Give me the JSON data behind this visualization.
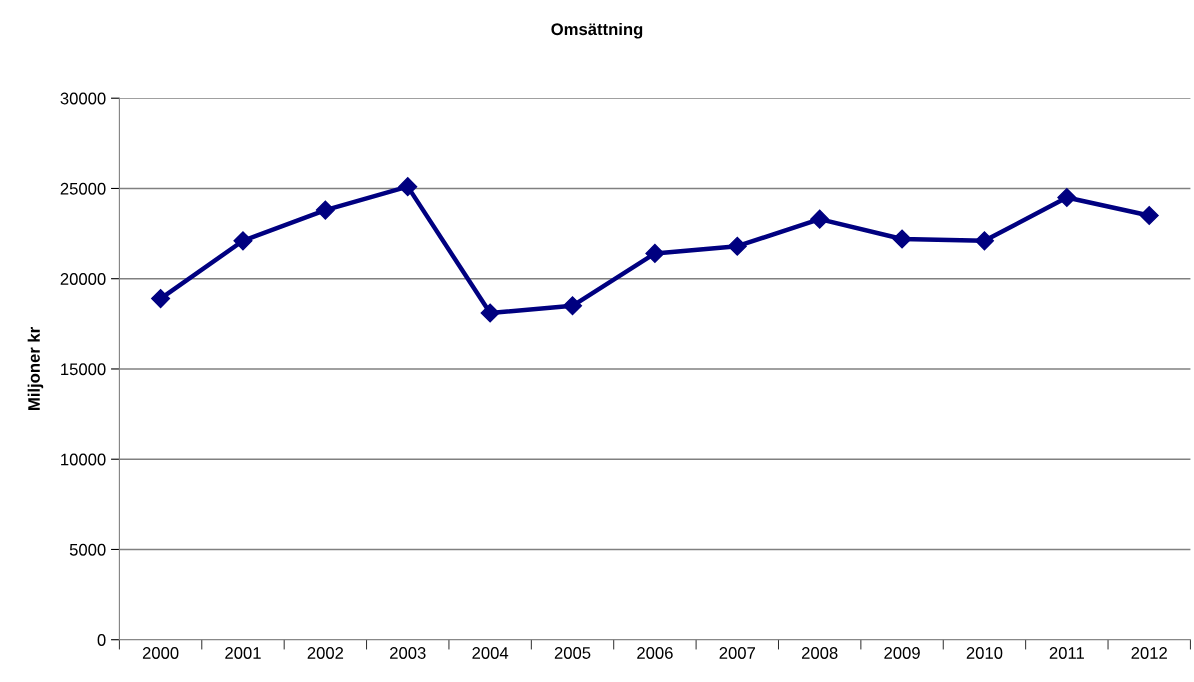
{
  "chart_data": {
    "type": "line",
    "title": "Omsättning",
    "ylabel": "Miljoner kr",
    "categories": [
      "2000",
      "2001",
      "2002",
      "2003",
      "2004",
      "2005",
      "2006",
      "2007",
      "2008",
      "2009",
      "2010",
      "2011",
      "2012"
    ],
    "series": [
      {
        "color": "#000080",
        "values": [
          18900,
          22100,
          23800,
          25100,
          18100,
          18500,
          21400,
          21800,
          23300,
          22200,
          22100,
          24500,
          23500
        ]
      }
    ],
    "ylim": [
      0,
      30000
    ],
    "yticks": [
      0,
      5000,
      10000,
      15000,
      20000,
      25000,
      30000
    ],
    "grid": "y",
    "marker": "diamond",
    "line_style": "solid"
  }
}
